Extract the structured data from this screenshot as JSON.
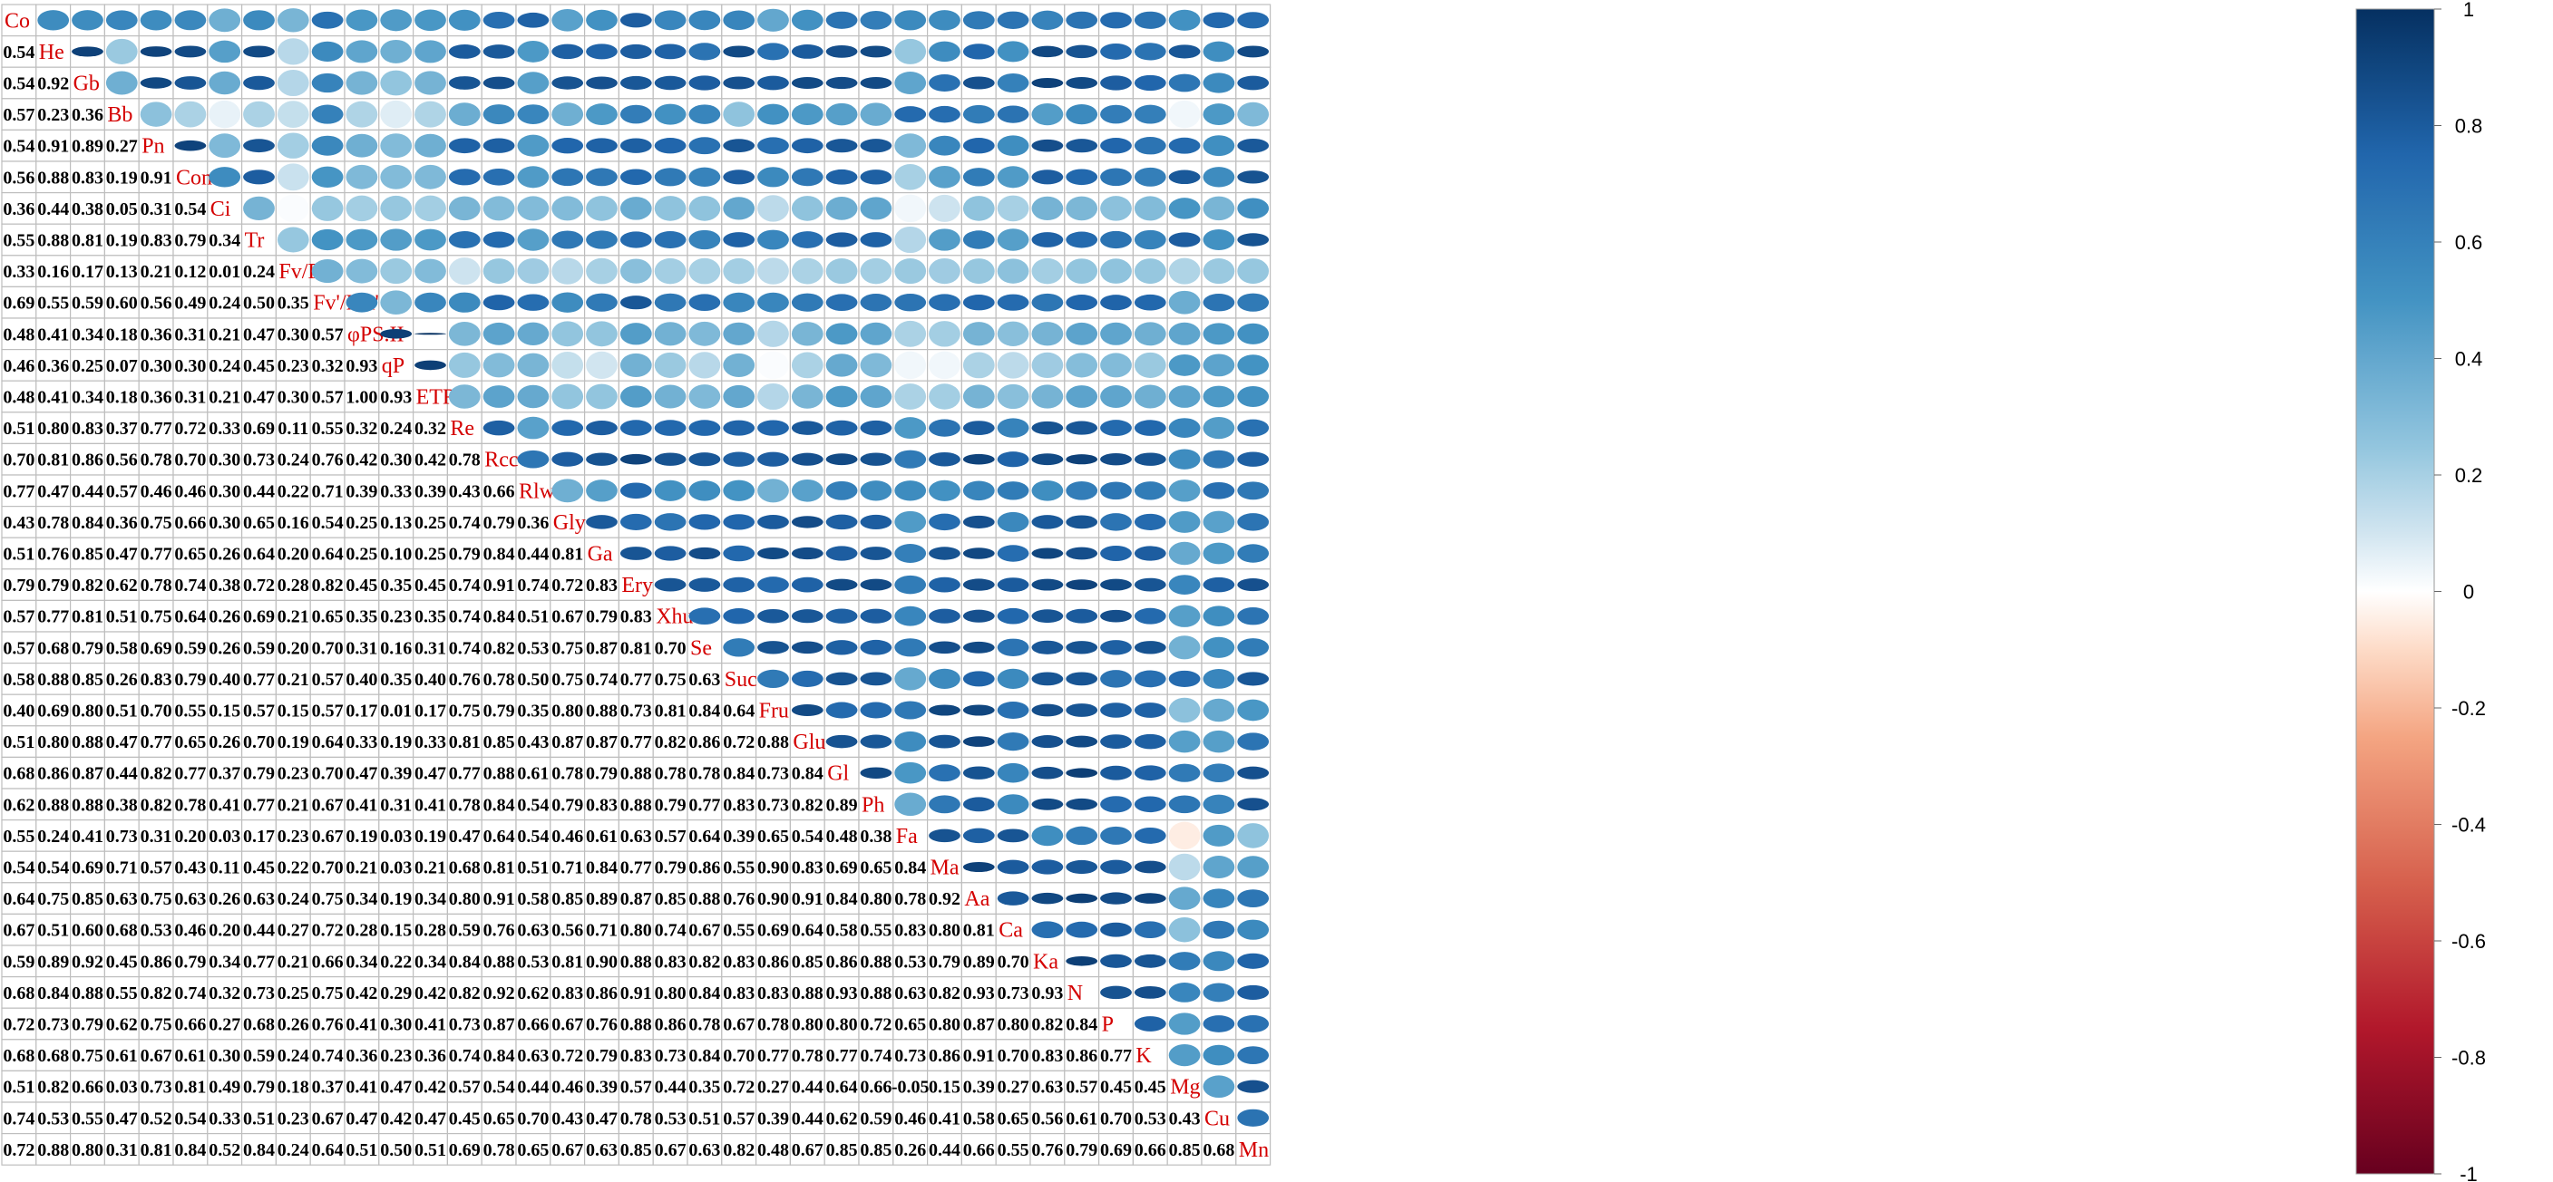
{
  "chart_data": {
    "type": "heatmap",
    "title": "",
    "variables": [
      "Co",
      "He",
      "Gb",
      "Bb",
      "Pn",
      "Cond",
      "Ci",
      "Tr",
      "Fv/Fm",
      "Fv'/Fm'",
      "φPS.II",
      "qP",
      "ETR",
      "Re",
      "Rcc",
      "Rlwc",
      "Gly",
      "Ga",
      "Ery",
      "Xhu",
      "Se",
      "Suc",
      "Fru",
      "Glu",
      "Gl",
      "Ph",
      "Fa",
      "Ma",
      "Aa",
      "Ca",
      "Ka",
      "N",
      "P",
      "K",
      "Mg",
      "Cu",
      "Mn"
    ],
    "lower_triangle_values": [
      [],
      [
        0.54
      ],
      [
        0.54,
        0.92
      ],
      [
        0.57,
        0.23,
        0.36
      ],
      [
        0.54,
        0.91,
        0.89,
        0.27
      ],
      [
        0.56,
        0.88,
        0.83,
        0.19,
        0.91
      ],
      [
        0.36,
        0.44,
        0.38,
        0.05,
        0.31,
        0.54
      ],
      [
        0.55,
        0.88,
        0.81,
        0.19,
        0.83,
        0.79,
        0.34
      ],
      [
        0.33,
        0.16,
        0.17,
        0.13,
        0.21,
        0.12,
        0.01,
        0.24
      ],
      [
        0.69,
        0.55,
        0.59,
        0.6,
        0.56,
        0.49,
        0.24,
        0.5,
        0.35
      ],
      [
        0.48,
        0.41,
        0.34,
        0.18,
        0.36,
        0.31,
        0.21,
        0.47,
        0.3,
        0.57
      ],
      [
        0.46,
        0.36,
        0.25,
        0.07,
        0.3,
        0.3,
        0.24,
        0.45,
        0.23,
        0.32,
        0.93
      ],
      [
        0.48,
        0.41,
        0.34,
        0.18,
        0.36,
        0.31,
        0.21,
        0.47,
        0.3,
        0.57,
        1.0,
        0.93
      ],
      [
        0.51,
        0.8,
        0.83,
        0.37,
        0.77,
        0.72,
        0.33,
        0.69,
        0.11,
        0.55,
        0.32,
        0.24,
        0.32
      ],
      [
        0.7,
        0.81,
        0.86,
        0.56,
        0.78,
        0.7,
        0.3,
        0.73,
        0.24,
        0.76,
        0.42,
        0.3,
        0.42,
        0.78
      ],
      [
        0.77,
        0.47,
        0.44,
        0.57,
        0.46,
        0.46,
        0.3,
        0.44,
        0.22,
        0.71,
        0.39,
        0.33,
        0.39,
        0.43,
        0.66
      ],
      [
        0.43,
        0.78,
        0.84,
        0.36,
        0.75,
        0.66,
        0.3,
        0.65,
        0.16,
        0.54,
        0.25,
        0.13,
        0.25,
        0.74,
        0.79,
        0.36
      ],
      [
        0.51,
        0.76,
        0.85,
        0.47,
        0.77,
        0.65,
        0.26,
        0.64,
        0.2,
        0.64,
        0.25,
        0.1,
        0.25,
        0.79,
        0.84,
        0.44,
        0.81
      ],
      [
        0.79,
        0.79,
        0.82,
        0.62,
        0.78,
        0.74,
        0.38,
        0.72,
        0.28,
        0.82,
        0.45,
        0.35,
        0.45,
        0.74,
        0.91,
        0.74,
        0.72,
        0.83
      ],
      [
        0.57,
        0.77,
        0.81,
        0.51,
        0.75,
        0.64,
        0.26,
        0.69,
        0.21,
        0.65,
        0.35,
        0.23,
        0.35,
        0.74,
        0.84,
        0.51,
        0.67,
        0.79,
        0.83
      ],
      [
        0.57,
        0.68,
        0.79,
        0.58,
        0.69,
        0.59,
        0.26,
        0.59,
        0.2,
        0.7,
        0.31,
        0.16,
        0.31,
        0.74,
        0.82,
        0.53,
        0.75,
        0.87,
        0.81,
        0.7
      ],
      [
        0.58,
        0.88,
        0.85,
        0.26,
        0.83,
        0.79,
        0.4,
        0.77,
        0.21,
        0.57,
        0.4,
        0.35,
        0.4,
        0.76,
        0.78,
        0.5,
        0.75,
        0.74,
        0.77,
        0.75,
        0.63
      ],
      [
        0.4,
        0.69,
        0.8,
        0.51,
        0.7,
        0.55,
        0.15,
        0.57,
        0.15,
        0.57,
        0.17,
        0.01,
        0.17,
        0.75,
        0.79,
        0.35,
        0.8,
        0.88,
        0.73,
        0.81,
        0.84,
        0.64
      ],
      [
        0.51,
        0.8,
        0.88,
        0.47,
        0.77,
        0.65,
        0.26,
        0.7,
        0.19,
        0.64,
        0.33,
        0.19,
        0.33,
        0.81,
        0.85,
        0.43,
        0.87,
        0.87,
        0.77,
        0.82,
        0.86,
        0.72,
        0.88
      ],
      [
        0.68,
        0.86,
        0.87,
        0.44,
        0.82,
        0.77,
        0.37,
        0.79,
        0.23,
        0.7,
        0.47,
        0.39,
        0.47,
        0.77,
        0.88,
        0.61,
        0.78,
        0.79,
        0.88,
        0.78,
        0.78,
        0.84,
        0.73,
        0.84
      ],
      [
        0.62,
        0.88,
        0.88,
        0.38,
        0.82,
        0.78,
        0.41,
        0.77,
        0.21,
        0.67,
        0.41,
        0.31,
        0.41,
        0.78,
        0.84,
        0.54,
        0.79,
        0.83,
        0.88,
        0.79,
        0.77,
        0.83,
        0.73,
        0.82,
        0.89
      ],
      [
        0.55,
        0.24,
        0.41,
        0.73,
        0.31,
        0.2,
        0.03,
        0.17,
        0.23,
        0.67,
        0.19,
        0.03,
        0.19,
        0.47,
        0.64,
        0.54,
        0.46,
        0.61,
        0.63,
        0.57,
        0.64,
        0.39,
        0.65,
        0.54,
        0.48,
        0.38
      ],
      [
        0.54,
        0.54,
        0.69,
        0.71,
        0.57,
        0.43,
        0.11,
        0.45,
        0.22,
        0.7,
        0.21,
        0.03,
        0.21,
        0.68,
        0.81,
        0.51,
        0.71,
        0.84,
        0.77,
        0.79,
        0.86,
        0.55,
        0.9,
        0.83,
        0.69,
        0.65,
        0.84
      ],
      [
        0.64,
        0.75,
        0.85,
        0.63,
        0.75,
        0.63,
        0.26,
        0.63,
        0.24,
        0.75,
        0.34,
        0.19,
        0.34,
        0.8,
        0.91,
        0.58,
        0.85,
        0.89,
        0.87,
        0.85,
        0.88,
        0.76,
        0.9,
        0.91,
        0.84,
        0.8,
        0.78,
        0.92
      ],
      [
        0.67,
        0.51,
        0.6,
        0.68,
        0.53,
        0.46,
        0.2,
        0.44,
        0.27,
        0.72,
        0.28,
        0.15,
        0.28,
        0.59,
        0.76,
        0.63,
        0.56,
        0.71,
        0.8,
        0.74,
        0.67,
        0.55,
        0.69,
        0.64,
        0.58,
        0.55,
        0.83,
        0.8,
        0.81
      ],
      [
        0.59,
        0.89,
        0.92,
        0.45,
        0.86,
        0.79,
        0.34,
        0.77,
        0.21,
        0.66,
        0.34,
        0.22,
        0.34,
        0.84,
        0.88,
        0.53,
        0.81,
        0.9,
        0.88,
        0.83,
        0.82,
        0.83,
        0.86,
        0.85,
        0.86,
        0.88,
        0.53,
        0.79,
        0.89,
        0.7
      ],
      [
        0.68,
        0.84,
        0.88,
        0.55,
        0.82,
        0.74,
        0.32,
        0.73,
        0.25,
        0.75,
        0.42,
        0.29,
        0.42,
        0.82,
        0.92,
        0.62,
        0.83,
        0.86,
        0.91,
        0.8,
        0.84,
        0.83,
        0.83,
        0.88,
        0.93,
        0.88,
        0.63,
        0.82,
        0.93,
        0.73,
        0.93
      ],
      [
        0.72,
        0.73,
        0.79,
        0.62,
        0.75,
        0.66,
        0.27,
        0.68,
        0.26,
        0.76,
        0.41,
        0.3,
        0.41,
        0.73,
        0.87,
        0.66,
        0.67,
        0.76,
        0.88,
        0.86,
        0.78,
        0.67,
        0.78,
        0.8,
        0.8,
        0.72,
        0.65,
        0.8,
        0.87,
        0.8,
        0.82,
        0.84
      ],
      [
        0.68,
        0.68,
        0.75,
        0.61,
        0.67,
        0.61,
        0.3,
        0.59,
        0.24,
        0.74,
        0.36,
        0.23,
        0.36,
        0.74,
        0.84,
        0.63,
        0.72,
        0.79,
        0.83,
        0.73,
        0.84,
        0.7,
        0.77,
        0.78,
        0.77,
        0.74,
        0.73,
        0.86,
        0.91,
        0.7,
        0.83,
        0.86,
        0.77
      ],
      [
        0.51,
        0.82,
        0.66,
        0.03,
        0.73,
        0.81,
        0.49,
        0.79,
        0.18,
        0.37,
        0.41,
        0.47,
        0.42,
        0.57,
        0.54,
        0.44,
        0.46,
        0.39,
        0.57,
        0.44,
        0.35,
        0.72,
        0.27,
        0.44,
        0.64,
        0.66,
        -0.05,
        0.15,
        0.39,
        0.27,
        0.63,
        0.57,
        0.45,
        0.45
      ],
      [
        0.74,
        0.53,
        0.55,
        0.47,
        0.52,
        0.54,
        0.33,
        0.51,
        0.23,
        0.67,
        0.47,
        0.42,
        0.47,
        0.45,
        0.65,
        0.7,
        0.43,
        0.47,
        0.78,
        0.53,
        0.51,
        0.57,
        0.39,
        0.44,
        0.62,
        0.59,
        0.46,
        0.41,
        0.58,
        0.65,
        0.56,
        0.61,
        0.7,
        0.53,
        0.43
      ],
      [
        0.72,
        0.88,
        0.8,
        0.31,
        0.81,
        0.84,
        0.52,
        0.84,
        0.24,
        0.64,
        0.51,
        0.5,
        0.51,
        0.69,
        0.78,
        0.65,
        0.67,
        0.63,
        0.85,
        0.67,
        0.63,
        0.82,
        0.48,
        0.67,
        0.85,
        0.85,
        0.26,
        0.44,
        0.66,
        0.55,
        0.76,
        0.79,
        0.69,
        0.66,
        0.85,
        0.68
      ]
    ],
    "upper_triangle_encoding": "ellipse",
    "colorbar_ticks": [
      1,
      0.8,
      0.6,
      0.4,
      0.2,
      0,
      -0.2,
      -0.4,
      -0.6,
      -0.8,
      -1
    ],
    "colorbar_range": [
      -1,
      1
    ],
    "colors": {
      "negative_end": "#67001f",
      "neutral": "#ffffff",
      "positive_end": "#053061",
      "label": "#d40000",
      "grid": "#bebebe"
    }
  }
}
